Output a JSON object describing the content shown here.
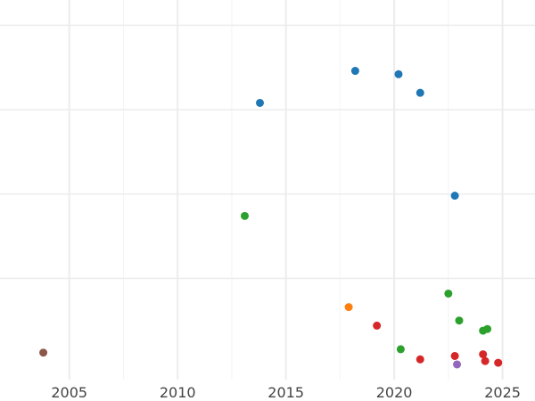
{
  "chart_data": {
    "type": "scatter",
    "title": "",
    "xlabel": "",
    "ylabel": "",
    "xlim": [
      2001.8,
      2026.5
    ],
    "ylim": [
      -0.1,
      2.15
    ],
    "grid": true,
    "x_ticks": [
      "2005",
      "2010",
      "2015",
      "2020",
      "2025"
    ],
    "x_tick_values": [
      2005,
      2010,
      2015,
      2020,
      2025
    ],
    "y_gridlines": [
      0.5,
      1.0,
      1.5,
      2.0
    ],
    "series": [
      {
        "color": "#1f77b4",
        "points": [
          {
            "x": 2013.8,
            "y": 1.54
          },
          {
            "x": 2018.2,
            "y": 1.73
          },
          {
            "x": 2020.2,
            "y": 1.71
          },
          {
            "x": 2021.2,
            "y": 1.6
          },
          {
            "x": 2022.8,
            "y": 0.99
          }
        ]
      },
      {
        "color": "#2ca02c",
        "points": [
          {
            "x": 2013.1,
            "y": 0.87
          },
          {
            "x": 2020.3,
            "y": 0.08
          },
          {
            "x": 2022.5,
            "y": 0.41
          },
          {
            "x": 2023.0,
            "y": 0.25
          },
          {
            "x": 2024.1,
            "y": 0.19
          },
          {
            "x": 2024.3,
            "y": 0.2
          }
        ]
      },
      {
        "color": "#ff7f0e",
        "points": [
          {
            "x": 2017.9,
            "y": 0.33
          }
        ]
      },
      {
        "color": "#d62728",
        "points": [
          {
            "x": 2019.2,
            "y": 0.22
          },
          {
            "x": 2021.2,
            "y": 0.02
          },
          {
            "x": 2022.8,
            "y": 0.04
          },
          {
            "x": 2024.1,
            "y": 0.05
          },
          {
            "x": 2024.2,
            "y": 0.01
          },
          {
            "x": 2024.8,
            "y": 0.0
          }
        ]
      },
      {
        "color": "#9467bd",
        "points": [
          {
            "x": 2022.9,
            "y": -0.01
          }
        ]
      },
      {
        "color": "#8c564b",
        "points": [
          {
            "x": 2003.8,
            "y": 0.06
          }
        ]
      }
    ]
  }
}
